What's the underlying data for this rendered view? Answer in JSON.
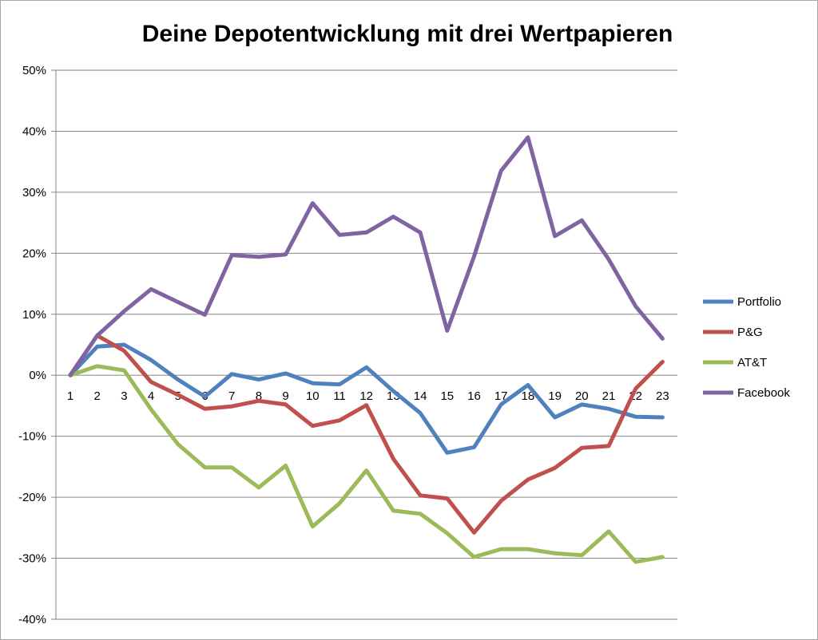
{
  "chart_data": {
    "type": "line",
    "title": "Deine Depotentwicklung mit drei Wertpapieren",
    "xlabel": "",
    "ylabel": "",
    "categories": [
      "1",
      "2",
      "3",
      "4",
      "5",
      "6",
      "7",
      "8",
      "9",
      "10",
      "11",
      "12",
      "13",
      "14",
      "15",
      "16",
      "17",
      "18",
      "19",
      "20",
      "21",
      "22",
      "23"
    ],
    "ylim": [
      -40,
      50
    ],
    "yticks": [
      "50%",
      "40%",
      "30%",
      "20%",
      "10%",
      "0%",
      "-10%",
      "-20%",
      "-30%",
      "-40%"
    ],
    "ytick_values": [
      50,
      40,
      30,
      20,
      10,
      0,
      -10,
      -20,
      -30,
      -40
    ],
    "grid": true,
    "legend_position": "right",
    "series": [
      {
        "name": "Portfolio",
        "color": "#4f81bd",
        "values": [
          0,
          4.7,
          5.0,
          2.5,
          -0.7,
          -3.5,
          0.2,
          -0.7,
          0.3,
          -1.3,
          -1.5,
          1.3,
          -2.6,
          -6.2,
          -12.7,
          -11.8,
          -4.8,
          -1.6,
          -6.9,
          -4.8,
          -5.5,
          -6.8,
          -6.9
        ]
      },
      {
        "name": "P&G",
        "color": "#c0504d",
        "values": [
          0,
          6.5,
          4.0,
          -1.1,
          -3.2,
          -5.5,
          -5.1,
          -4.2,
          -4.8,
          -8.3,
          -7.4,
          -4.9,
          -13.7,
          -19.7,
          -20.2,
          -25.8,
          -20.6,
          -17.1,
          -15.2,
          -11.9,
          -11.6,
          -2.2,
          2.2
        ]
      },
      {
        "name": "AT&T",
        "color": "#9bbb59",
        "values": [
          0,
          1.5,
          0.8,
          -5.6,
          -11.3,
          -15.1,
          -15.1,
          -18.4,
          -14.8,
          -24.8,
          -21.0,
          -15.6,
          -22.2,
          -22.7,
          -25.9,
          -29.8,
          -28.5,
          -28.5,
          -29.2,
          -29.5,
          -25.6,
          -30.6,
          -29.8
        ]
      },
      {
        "name": "Facebook",
        "color": "#8064a2",
        "values": [
          0,
          6.5,
          10.5,
          14.1,
          12.0,
          9.9,
          19.7,
          19.4,
          19.8,
          28.2,
          23.0,
          23.4,
          26.0,
          23.4,
          7.3,
          19.5,
          33.5,
          39.0,
          22.8,
          25.4,
          19.0,
          11.3,
          6.0
        ]
      }
    ]
  }
}
